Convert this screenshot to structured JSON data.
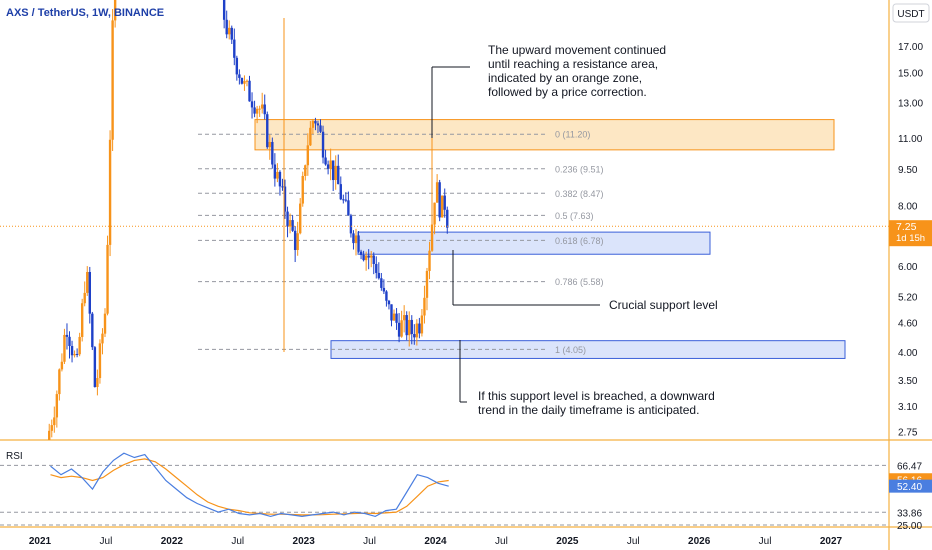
{
  "header": {
    "symbol_line": "AXS / TetherUS, 1W, BINANCE",
    "currency_badge": "USDT"
  },
  "price_axis": {
    "ticks": [
      "17.00",
      "15.00",
      "13.00",
      "11.00",
      "9.50",
      "8.00",
      "6.00",
      "5.20",
      "4.60",
      "4.00",
      "3.50",
      "3.10",
      "2.75"
    ],
    "tick_values": [
      17,
      15,
      13,
      11,
      9.5,
      8,
      6,
      5.2,
      4.6,
      4,
      3.5,
      3.1,
      2.75
    ],
    "scale": "log",
    "current_price": "7.25",
    "current_countdown": "1d 15h",
    "current_value": 7.25
  },
  "time_axis": {
    "labels": [
      "2021",
      "Jul",
      "2022",
      "Jul",
      "2023",
      "Jul",
      "2024",
      "Jul",
      "2025",
      "Jul",
      "2026",
      "Jul",
      "2027"
    ],
    "bold": [
      true,
      false,
      true,
      false,
      true,
      false,
      true,
      false,
      true,
      false,
      true,
      false,
      true
    ]
  },
  "colors": {
    "up": "#f7931a",
    "down": "#1e40c8",
    "resistance_fill": "#fde7c4",
    "resistance_stroke": "#f7931a",
    "support_fill": "#dbe4fb",
    "support_stroke": "#3a5fd9",
    "rsi_line": "#4a7ee0",
    "rsi_ma": "#f7931a"
  },
  "fib_levels": [
    {
      "label": "0 (11.20)",
      "value": 11.2
    },
    {
      "label": "0.236 (9.51)",
      "value": 9.51
    },
    {
      "label": "0.382 (8.47)",
      "value": 8.47
    },
    {
      "label": "0.5 (7.63)",
      "value": 7.63
    },
    {
      "label": "0.618 (6.78)",
      "value": 6.78
    },
    {
      "label": "0.786 (5.58)",
      "value": 5.58
    },
    {
      "label": "1 (4.05)",
      "value": 4.05
    }
  ],
  "annotations": {
    "resistance_note": [
      "The upward movement continued",
      "until reaching a resistance area,",
      "indicated by an orange zone,",
      "followed by a price correction."
    ],
    "support_note": "Crucial support level",
    "breach_note": [
      "If this support level is breached, a downward",
      "trend in the daily timeframe is anticipated."
    ]
  },
  "rsi": {
    "label": "RSI",
    "ticks": [
      "66.47",
      "33.86",
      "25.00"
    ],
    "tick_values": [
      66.47,
      33.86,
      25
    ],
    "rsi_value": "52.40",
    "ma_value": "56.16",
    "rsi_current": 52.4,
    "ma_current": 56.16,
    "range": [
      25,
      80
    ]
  },
  "chart_data": {
    "type": "candlestick",
    "title": "AXS / TetherUS, 1W, BINANCE",
    "timeframe": "1W",
    "y_scale": "log",
    "x_range": [
      "2021",
      "2027"
    ],
    "y_range": [
      2.5,
      20
    ],
    "resistance_zone": {
      "low": 10.4,
      "high": 12.0,
      "from": "2022-06",
      "to": "2025-12"
    },
    "support_zone": {
      "low": 6.35,
      "high": 7.05,
      "from": "2023-05",
      "to": "2026-01"
    },
    "lower_support_zone": {
      "low": 3.88,
      "high": 4.22,
      "from": "2023-02",
      "to": "2026-06"
    },
    "current_price": 7.25,
    "rsi_values": [
      66,
      60,
      64,
      58,
      50,
      62,
      70,
      75,
      72,
      74,
      65,
      56,
      50,
      44,
      40,
      37,
      34,
      36,
      33,
      32,
      33,
      31,
      33,
      32,
      31,
      32,
      33,
      34,
      32,
      34,
      33,
      31,
      35,
      36,
      48,
      60,
      58,
      54,
      52
    ],
    "rsi_ma_values": [
      60,
      58,
      59,
      58,
      56,
      58,
      63,
      67,
      70,
      71,
      69,
      64,
      58,
      52,
      46,
      41,
      38,
      36,
      35,
      33.5,
      33,
      32.5,
      32.5,
      32.3,
      32,
      32,
      32.2,
      32.5,
      32.7,
      33,
      33.2,
      33,
      33.4,
      34,
      38,
      45,
      52,
      55,
      56
    ]
  }
}
